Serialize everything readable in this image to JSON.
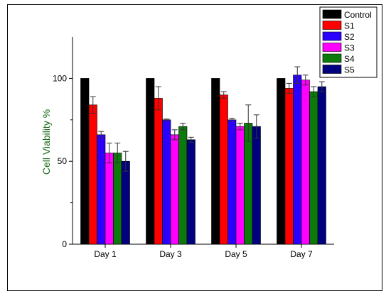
{
  "chart_data": {
    "type": "bar",
    "title": "",
    "xlabel": "",
    "ylabel": "Cell Viability %",
    "ylim": [
      0,
      125
    ],
    "yticks": [
      0,
      50,
      100
    ],
    "grid": false,
    "legend_position": "top-right",
    "categories": [
      "Day 1",
      "Day 3",
      "Day 5",
      "Day 7"
    ],
    "series": [
      {
        "name": "Control",
        "color": "#000000",
        "values": [
          100,
          100,
          100,
          100
        ],
        "errors": [
          0,
          0,
          0,
          0
        ]
      },
      {
        "name": "S1",
        "color": "#ff0000",
        "values": [
          84,
          88,
          90,
          94
        ],
        "errors": [
          5,
          7,
          2,
          3
        ]
      },
      {
        "name": "S2",
        "color": "#2b00ff",
        "values": [
          66,
          75,
          75,
          102
        ],
        "errors": [
          2,
          0.5,
          1,
          5
        ]
      },
      {
        "name": "S3",
        "color": "#ff00ff",
        "values": [
          55,
          66,
          71,
          99
        ],
        "errors": [
          6,
          3,
          2,
          3
        ]
      },
      {
        "name": "S4",
        "color": "#0b7a0b",
        "values": [
          55,
          71,
          73,
          92
        ],
        "errors": [
          6,
          2,
          11,
          3
        ]
      },
      {
        "name": "S5",
        "color": "#00007f",
        "values": [
          50,
          63,
          71,
          95
        ],
        "errors": [
          6,
          1.5,
          7,
          3
        ]
      }
    ]
  }
}
